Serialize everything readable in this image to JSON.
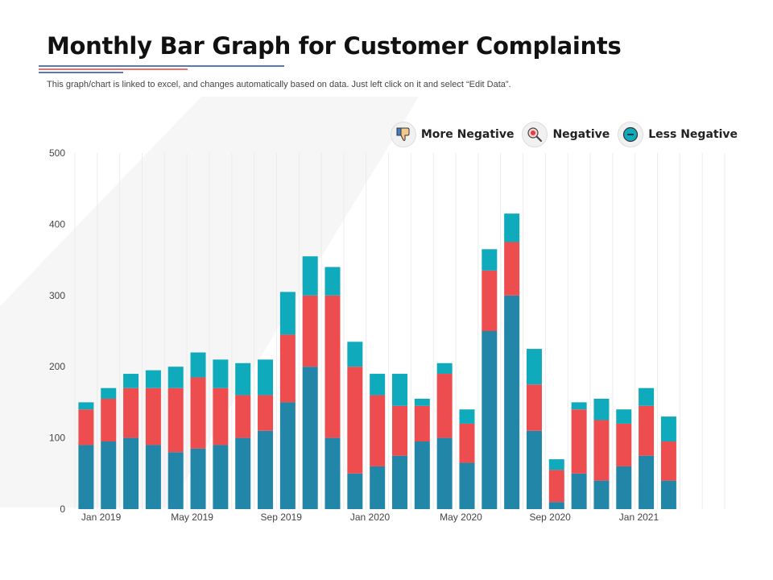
{
  "title": "Monthly Bar Graph for Customer Complaints",
  "subtitle": "This graph/chart is linked to excel,  and changes automatically based on data. Just left click on it and select “Edit Data”.",
  "colors": {
    "more_negative": "#2286a8",
    "negative": "#ee4d50",
    "less_negative": "#10aabd",
    "rule_blue": "#1f4e9a",
    "rule_red": "#e0403f"
  },
  "legend": [
    {
      "label": "More Negative",
      "icon": "thumbs-down-icon"
    },
    {
      "label": "Negative",
      "icon": "magnifier-icon"
    },
    {
      "label": "Less Negative",
      "icon": "minus-circle-icon"
    }
  ],
  "chart_data": {
    "type": "bar",
    "stacked": true,
    "title": "Monthly Bar Graph for Customer Complaints",
    "xlabel": "",
    "ylabel": "",
    "ylim": [
      0,
      500
    ],
    "y_ticks": [
      0,
      100,
      200,
      300,
      400,
      500
    ],
    "grid": "vertical",
    "legend_position": "top-right",
    "x_tick_labels": [
      {
        "index": 0,
        "label": "Jan 2019"
      },
      {
        "index": 4,
        "label": "May 2019"
      },
      {
        "index": 8,
        "label": "Sep 2019"
      },
      {
        "index": 12,
        "label": "Jan 2020"
      },
      {
        "index": 16,
        "label": "May 2020"
      },
      {
        "index": 20,
        "label": "Sep 2020"
      },
      {
        "index": 24,
        "label": "Jan 2021"
      }
    ],
    "categories": [
      "Jan 2019",
      "Feb 2019",
      "Mar 2019",
      "Apr 2019",
      "May 2019",
      "Jun 2019",
      "Jul 2019",
      "Aug 2019",
      "Sep 2019",
      "Oct 2019",
      "Nov 2019",
      "Dec 2019",
      "Jan 2020",
      "Feb 2020",
      "Mar 2020",
      "Apr 2020",
      "May 2020",
      "Jun 2020",
      "Jul 2020",
      "Aug 2020",
      "Sep 2020",
      "Oct 2020",
      "Nov 2020",
      "Dec 2020",
      "Jan 2021",
      "Feb 2021",
      "Mar 2021",
      "Apr 2021",
      "May 2021"
    ],
    "series": [
      {
        "name": "More Negative",
        "values": [
          90,
          95,
          100,
          90,
          80,
          85,
          90,
          100,
          110,
          150,
          200,
          100,
          50,
          60,
          75,
          95,
          100,
          65,
          250,
          300,
          110,
          10,
          50,
          40,
          60,
          75,
          40,
          0,
          0
        ]
      },
      {
        "name": "Negative",
        "values": [
          50,
          60,
          70,
          80,
          90,
          100,
          80,
          60,
          50,
          95,
          100,
          200,
          150,
          100,
          70,
          50,
          90,
          55,
          85,
          75,
          65,
          45,
          90,
          85,
          60,
          70,
          55,
          0,
          0
        ]
      },
      {
        "name": "Less Negative",
        "values": [
          10,
          15,
          20,
          25,
          30,
          35,
          40,
          45,
          50,
          60,
          55,
          40,
          35,
          30,
          45,
          10,
          15,
          20,
          30,
          40,
          50,
          15,
          10,
          30,
          20,
          25,
          35,
          0,
          0
        ]
      }
    ]
  }
}
